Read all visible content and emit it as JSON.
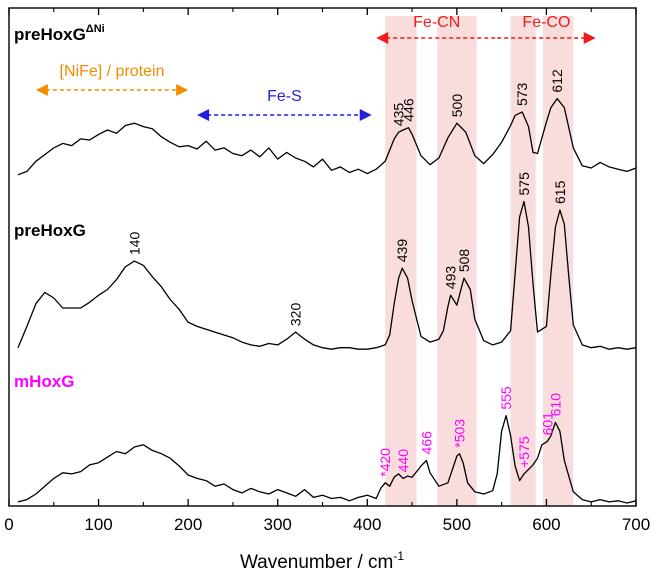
{
  "chart_data": {
    "type": "line",
    "xlabel": "Wavenumber / cm",
    "xlabel_sup": "-1",
    "xlim": [
      0,
      700
    ],
    "xticks": [
      0,
      100,
      200,
      300,
      400,
      500,
      600,
      700
    ],
    "grid": false,
    "legend": "none",
    "highlight_bands": [
      {
        "from": 420,
        "to": 455
      },
      {
        "from": 478,
        "to": 522
      },
      {
        "from": 560,
        "to": 588
      },
      {
        "from": 596,
        "to": 630
      }
    ],
    "regions": [
      {
        "label": "[NiFe] / protein",
        "from": 30,
        "to": 200,
        "color": "#f28c00"
      },
      {
        "label": "Fe-S",
        "from": 210,
        "to": 405,
        "color": "#1f1fdd"
      },
      {
        "label": "Fe-CN",
        "from": 410,
        "to": 545,
        "color": "#ee1c1c"
      },
      {
        "label": "Fe-CO",
        "from": 545,
        "to": 655,
        "color": "#ee1c1c"
      }
    ],
    "series": [
      {
        "name": "preHoxG",
        "name_sup": "ΔNi",
        "color": "#000000",
        "label_color": "#000000",
        "x": [
          10,
          20,
          30,
          40,
          50,
          60,
          70,
          80,
          90,
          100,
          110,
          120,
          130,
          140,
          150,
          160,
          170,
          180,
          190,
          200,
          210,
          220,
          230,
          240,
          250,
          260,
          270,
          280,
          290,
          300,
          310,
          320,
          330,
          340,
          350,
          360,
          370,
          380,
          390,
          400,
          410,
          420,
          430,
          435,
          440,
          446,
          450,
          460,
          470,
          480,
          490,
          500,
          510,
          520,
          530,
          540,
          550,
          560,
          565,
          570,
          573,
          580,
          585,
          590,
          600,
          605,
          612,
          620,
          630,
          640,
          650,
          660,
          670,
          680,
          690,
          700
        ],
        "y": [
          0.02,
          0.05,
          0.14,
          0.2,
          0.26,
          0.3,
          0.28,
          0.34,
          0.33,
          0.38,
          0.42,
          0.39,
          0.46,
          0.48,
          0.45,
          0.43,
          0.36,
          0.31,
          0.27,
          0.28,
          0.25,
          0.32,
          0.24,
          0.26,
          0.21,
          0.19,
          0.24,
          0.18,
          0.26,
          0.16,
          0.22,
          0.17,
          0.14,
          0.09,
          0.16,
          0.06,
          0.09,
          0.04,
          0.07,
          0.03,
          0.07,
          0.14,
          0.34,
          0.4,
          0.42,
          0.44,
          0.38,
          0.19,
          0.11,
          0.17,
          0.35,
          0.48,
          0.4,
          0.19,
          0.12,
          0.2,
          0.31,
          0.46,
          0.55,
          0.57,
          0.58,
          0.45,
          0.22,
          0.21,
          0.49,
          0.62,
          0.7,
          0.62,
          0.26,
          0.1,
          0.08,
          0.13,
          0.09,
          0.07,
          0.05,
          0.08
        ]
      },
      {
        "name": "preHoxG",
        "name_sup": "",
        "color": "#000000",
        "label_color": "#000000",
        "x": [
          10,
          20,
          30,
          40,
          50,
          60,
          70,
          80,
          90,
          100,
          110,
          120,
          130,
          140,
          150,
          160,
          170,
          180,
          190,
          200,
          210,
          220,
          230,
          240,
          250,
          260,
          270,
          280,
          290,
          300,
          310,
          320,
          330,
          340,
          350,
          360,
          370,
          380,
          390,
          400,
          410,
          420,
          425,
          430,
          435,
          439,
          445,
          450,
          460,
          470,
          480,
          485,
          490,
          493,
          500,
          505,
          508,
          515,
          520,
          530,
          540,
          550,
          560,
          565,
          570,
          575,
          580,
          585,
          590,
          600,
          605,
          610,
          615,
          620,
          625,
          630,
          640,
          650,
          660,
          670,
          680,
          690,
          700
        ],
        "y": [
          0.03,
          0.18,
          0.34,
          0.42,
          0.38,
          0.31,
          0.31,
          0.31,
          0.35,
          0.4,
          0.44,
          0.51,
          0.6,
          0.64,
          0.61,
          0.53,
          0.46,
          0.37,
          0.3,
          0.21,
          0.18,
          0.16,
          0.14,
          0.12,
          0.1,
          0.07,
          0.05,
          0.04,
          0.06,
          0.05,
          0.09,
          0.14,
          0.09,
          0.05,
          0.03,
          0.02,
          0.03,
          0.03,
          0.02,
          0.02,
          0.03,
          0.05,
          0.12,
          0.34,
          0.52,
          0.59,
          0.52,
          0.36,
          0.11,
          0.07,
          0.09,
          0.15,
          0.32,
          0.4,
          0.33,
          0.45,
          0.52,
          0.44,
          0.23,
          0.08,
          0.05,
          0.07,
          0.15,
          0.55,
          0.95,
          1.06,
          0.88,
          0.48,
          0.14,
          0.18,
          0.55,
          0.88,
          1.0,
          0.9,
          0.53,
          0.19,
          0.05,
          0.03,
          0.04,
          0.02,
          0.03,
          0.02,
          0.03
        ]
      },
      {
        "name": "mHoxG",
        "name_sup": "",
        "color": "#000000",
        "label_color": "#ff00ff",
        "x": [
          10,
          20,
          30,
          40,
          50,
          60,
          70,
          80,
          90,
          100,
          110,
          120,
          130,
          140,
          150,
          160,
          170,
          180,
          190,
          200,
          210,
          220,
          230,
          240,
          250,
          260,
          270,
          280,
          290,
          300,
          310,
          320,
          330,
          340,
          350,
          360,
          370,
          380,
          390,
          400,
          410,
          415,
          420,
          425,
          430,
          435,
          440,
          445,
          450,
          455,
          460,
          466,
          470,
          480,
          490,
          495,
          500,
          503,
          507,
          512,
          520,
          530,
          540,
          545,
          550,
          555,
          560,
          565,
          570,
          575,
          580,
          585,
          590,
          595,
          601,
          605,
          610,
          615,
          620,
          630,
          640,
          650,
          660,
          670,
          680,
          690,
          700
        ],
        "y": [
          0.01,
          0.03,
          0.08,
          0.15,
          0.22,
          0.27,
          0.26,
          0.28,
          0.34,
          0.36,
          0.41,
          0.46,
          0.44,
          0.5,
          0.52,
          0.47,
          0.44,
          0.4,
          0.33,
          0.25,
          0.22,
          0.2,
          0.15,
          0.17,
          0.12,
          0.09,
          0.13,
          0.1,
          0.08,
          0.12,
          0.09,
          0.06,
          0.12,
          0.05,
          0.07,
          0.04,
          0.05,
          0.02,
          0.05,
          0.07,
          0.04,
          0.13,
          0.18,
          0.15,
          0.23,
          0.26,
          0.22,
          0.24,
          0.23,
          0.28,
          0.33,
          0.38,
          0.27,
          0.15,
          0.18,
          0.3,
          0.42,
          0.44,
          0.36,
          0.18,
          0.1,
          0.08,
          0.11,
          0.26,
          0.64,
          0.78,
          0.6,
          0.33,
          0.2,
          0.26,
          0.3,
          0.34,
          0.4,
          0.52,
          0.55,
          0.6,
          0.72,
          0.64,
          0.38,
          0.1,
          0.03,
          0.01,
          0.03,
          0.01,
          0.02,
          0.0,
          0.02
        ]
      }
    ],
    "peak_labels": [
      {
        "series": 0,
        "x": 435,
        "text": "435"
      },
      {
        "series": 0,
        "x": 446,
        "text": "446"
      },
      {
        "series": 0,
        "x": 500,
        "text": "500"
      },
      {
        "series": 0,
        "x": 573,
        "text": "573"
      },
      {
        "series": 0,
        "x": 612,
        "text": "612"
      },
      {
        "series": 1,
        "x": 140,
        "text": "140"
      },
      {
        "series": 1,
        "x": 320,
        "text": "320"
      },
      {
        "series": 1,
        "x": 439,
        "text": "439"
      },
      {
        "series": 1,
        "x": 493,
        "text": "493"
      },
      {
        "series": 1,
        "x": 508,
        "text": "508"
      },
      {
        "series": 1,
        "x": 575,
        "text": "575"
      },
      {
        "series": 1,
        "x": 615,
        "text": "615"
      },
      {
        "series": 2,
        "x": 420,
        "text": "*420"
      },
      {
        "series": 2,
        "x": 440,
        "text": "440"
      },
      {
        "series": 2,
        "x": 466,
        "text": "466"
      },
      {
        "series": 2,
        "x": 503,
        "text": "*503"
      },
      {
        "series": 2,
        "x": 555,
        "text": "555"
      },
      {
        "series": 2,
        "x": 575,
        "text": "+575"
      },
      {
        "series": 2,
        "x": 601,
        "text": "601"
      },
      {
        "series": 2,
        "x": 610,
        "text": "610"
      }
    ]
  },
  "colors": {
    "band": "#f9dcdc",
    "magenta": "#ff00ff",
    "orange": "#f28c00",
    "blue": "#1f1fdd",
    "red": "#ee1c1c"
  }
}
